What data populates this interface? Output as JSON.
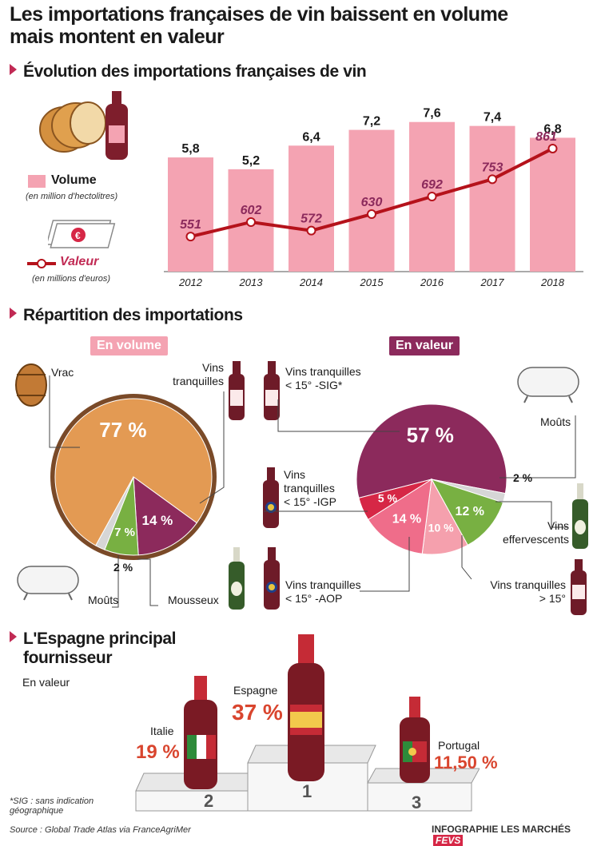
{
  "title_line1": "Les importations françaises de vin baissent en volume",
  "title_line2": "mais montent en valeur",
  "section1": {
    "title": "Évolution des importations françaises de vin",
    "legend_volume": "Volume",
    "legend_volume_unit": "(en million d'hectolitres)",
    "legend_valeur": "Valeur",
    "legend_valeur_unit": "(en millions d'euros)"
  },
  "colors": {
    "bar": "#f4a3b2",
    "line": "#b5121b",
    "accent": "#c12a54",
    "pie_orange": "#e39a53",
    "pie_plum": "#8c2a5c",
    "pie_green": "#78b042",
    "pie_grey": "#d6d6d6",
    "pie_red": "#d62746",
    "pie_pink": "#ef6d8a",
    "pie_lightpink": "#f5a0ad"
  },
  "chart_data": [
    {
      "type": "bar",
      "categories": [
        "2012",
        "2013",
        "2014",
        "2015",
        "2016",
        "2017",
        "2018"
      ],
      "series": [
        {
          "name": "Volume",
          "values": [
            5.8,
            5.2,
            6.4,
            7.2,
            7.6,
            7.4,
            6.8
          ],
          "labels": [
            "5,8",
            "5,2",
            "6,4",
            "7,2",
            "7,6",
            "7,4",
            "6,8"
          ]
        },
        {
          "name": "Valeur",
          "type": "line",
          "values": [
            551,
            602,
            572,
            630,
            692,
            753,
            861
          ],
          "labels": [
            "551",
            "602",
            "572",
            "630",
            "692",
            "753",
            "861"
          ]
        }
      ]
    },
    {
      "type": "pie",
      "heading": "En volume",
      "slices": [
        {
          "label": "Vrac",
          "value": 77,
          "value_label": "77 %"
        },
        {
          "label": "Vins tranquilles",
          "value": 14,
          "value_label": "14 %"
        },
        {
          "label": "Mousseux",
          "value": 7,
          "value_label": "7 %"
        },
        {
          "label": "Moûts",
          "value": 2,
          "value_label": "2 %"
        }
      ]
    },
    {
      "type": "pie",
      "heading": "En valeur",
      "slices": [
        {
          "label": "Vins tranquilles < 15° -SIG*",
          "value": 57,
          "value_label": "57 %"
        },
        {
          "label": "Moûts",
          "value": 2,
          "value_label": "2 %"
        },
        {
          "label": "Vins effervescents",
          "value": 12,
          "value_label": "12 %"
        },
        {
          "label": "Vins tranquilles > 15°",
          "value": 10,
          "value_label": "10 %"
        },
        {
          "label": "Vins tranquilles < 15° -AOP",
          "value": 14,
          "value_label": "14 %"
        },
        {
          "label": "Vins tranquilles < 15° -IGP",
          "value": 5,
          "value_label": "5 %"
        }
      ]
    },
    {
      "type": "bar",
      "heading": "En valeur",
      "categories": [
        "Espagne",
        "Italie",
        "Portugal"
      ],
      "values": [
        37,
        19,
        11.5
      ],
      "value_labels": [
        "37 %",
        "19 %",
        "11,50 %"
      ],
      "ranks": [
        "1",
        "2",
        "3"
      ]
    }
  ],
  "pie_labels": {
    "vrac": "Vrac",
    "vins_tranquilles_1": "Vins",
    "vins_tranquilles_2": "tranquilles",
    "mousseux": "Mousseux",
    "mouts": "Moûts",
    "sig_1": "Vins tranquilles",
    "sig_2": "< 15° -SIG*",
    "igp_1": "Vins",
    "igp_2": "tranquilles",
    "igp_3": "< 15° -IGP",
    "aop_1": "Vins tranquilles",
    "aop_2": "< 15° -AOP",
    "mouts_v": "Moûts",
    "eff_1": "Vins",
    "eff_2": "effervescents",
    "sup_1": "Vins tranquilles",
    "sup_2": "> 15°"
  },
  "section2": {
    "title": "Répartition des importations"
  },
  "section3": {
    "title_line1": "L'Espagne principal",
    "title_line2": "fournisseur",
    "subtitle": "En valeur"
  },
  "footnote_line1": "*SIG : sans indication",
  "footnote_line2": "géographique",
  "source": "Source : Global Trade Atlas via FranceAgriMer",
  "credit": "INFOGRAPHIE LES MARCHÉS",
  "credit_logo": "FEVS"
}
